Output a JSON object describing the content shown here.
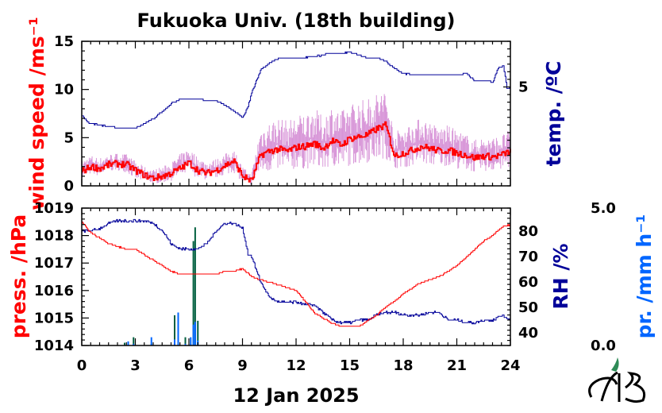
{
  "title": "Fukuoka Univ. (18th building)",
  "date_label": "12 Jan 2025",
  "colors": {
    "wind": "#ff0000",
    "wind_raw": "#d896d8",
    "temp": "#000099",
    "press": "#ff0000",
    "rh": "#000099",
    "precip_dark": "#005f3f",
    "precip_light": "#0066ff",
    "logo": "#2e8b57"
  },
  "chart_data": [
    {
      "type": "line",
      "name": "upper",
      "x_ticks": [
        "0",
        "3",
        "6",
        "9",
        "12",
        "15",
        "18",
        "21",
        "24"
      ],
      "xlim": [
        0,
        24
      ],
      "left_axis": {
        "label": "wind speed /ms⁻¹",
        "ticks": [
          "0",
          "5",
          "10",
          "15"
        ],
        "ylim": [
          0,
          15
        ]
      },
      "right_axis": {
        "label": "temp. /ºC",
        "ticks": [
          "5"
        ],
        "ylim": [
          -1.5,
          8
        ]
      },
      "series": [
        {
          "axis": "left",
          "x": [
            0,
            0.5,
            1,
            1.5,
            2,
            2.5,
            3,
            3.5,
            4,
            4.5,
            5,
            5.5,
            6,
            6.5,
            7,
            7.5,
            8,
            8.5,
            9,
            9.5,
            10,
            10.5,
            11,
            11.5,
            12,
            12.5,
            13,
            13.5,
            14,
            14.5,
            15,
            15.5,
            16,
            16.5,
            17,
            17.5,
            18,
            18.5,
            19,
            19.5,
            20,
            20.5,
            21,
            21.5,
            22,
            22.5,
            23,
            23.5,
            24
          ],
          "values": [
            1.5,
            2.0,
            1.8,
            2.2,
            2.3,
            2.2,
            1.6,
            1.1,
            0.8,
            1.0,
            1.3,
            1.8,
            2.4,
            1.6,
            1.3,
            1.6,
            2.1,
            2.6,
            1.0,
            0.5,
            3.2,
            3.6,
            3.8,
            3.6,
            4.0,
            4.1,
            4.4,
            3.9,
            4.7,
            4.2,
            4.9,
            5.1,
            5.3,
            5.9,
            6.3,
            3.1,
            3.4,
            3.7,
            4.1,
            3.9,
            3.6,
            3.7,
            3.4,
            3.2,
            2.9,
            3.1,
            3.0,
            3.2,
            3.6
          ]
        },
        {
          "axis": "left",
          "x": [
            0,
            0.5,
            1,
            1.5,
            2,
            2.5,
            3,
            3.5,
            4,
            4.5,
            5,
            5.5,
            6,
            6.5,
            7,
            7.5,
            8,
            8.5,
            9,
            9.5,
            10,
            10.5,
            11,
            11.5,
            12,
            12.5,
            13,
            13.5,
            14,
            14.5,
            15,
            15.5,
            16,
            16.5,
            17,
            17.5,
            18,
            18.5,
            19,
            19.5,
            20,
            20.5,
            21,
            21.5,
            22,
            22.5,
            23,
            23.5,
            24
          ],
          "low": [
            0.8,
            1.2,
            1.0,
            1.5,
            1.6,
            1.4,
            0.7,
            0.4,
            0.2,
            0.3,
            0.5,
            0.9,
            1.3,
            0.8,
            0.6,
            0.8,
            1.1,
            1.4,
            0.3,
            0.1,
            1.2,
            1.4,
            1.6,
            1.2,
            1.8,
            1.7,
            1.9,
            1.5,
            2.0,
            1.7,
            2.1,
            2.2,
            2.4,
            2.6,
            2.9,
            1.8,
            1.9,
            2.0,
            2.3,
            2.1,
            2.0,
            2.1,
            1.8,
            1.6,
            1.4,
            1.5,
            1.5,
            1.6,
            1.9
          ],
          "high": [
            2.6,
            3.2,
            2.9,
            3.3,
            3.4,
            3.3,
            2.6,
            2.0,
            1.7,
            2.0,
            2.4,
            3.3,
            4.0,
            3.0,
            2.5,
            2.8,
            3.3,
            3.9,
            2.0,
            1.2,
            6.1,
            6.7,
            7.1,
            6.8,
            7.3,
            7.6,
            8.2,
            7.2,
            8.4,
            7.7,
            8.6,
            8.9,
            9.1,
            9.7,
            10.2,
            5.6,
            6.1,
            6.6,
            7.1,
            6.7,
            6.1,
            6.3,
            5.8,
            5.4,
            4.8,
            5.1,
            5.0,
            5.3,
            5.9
          ]
        },
        {
          "axis": "right",
          "x": [
            0,
            0.4,
            1,
            2,
            3,
            3.5,
            4,
            4.5,
            5,
            5.5,
            6,
            6.5,
            7,
            7.5,
            8,
            8.5,
            9,
            9.3,
            9.5,
            10,
            10.5,
            11,
            12,
            13,
            14,
            14.5,
            15,
            15.5,
            16,
            16.5,
            17,
            17.5,
            18,
            18.5,
            19,
            19.5,
            20,
            20.5,
            21,
            21.5,
            22,
            22.5,
            23,
            23.3,
            23.6,
            23.8,
            24
          ],
          "values": [
            3.1,
            2.6,
            2.5,
            2.3,
            2.3,
            2.6,
            2.9,
            3.4,
            3.9,
            4.2,
            4.2,
            4.2,
            4.1,
            4.1,
            3.8,
            3.4,
            3.0,
            3.7,
            4.6,
            6.1,
            6.6,
            6.9,
            6.9,
            7.0,
            7.2,
            7.2,
            7.3,
            7.1,
            6.9,
            6.9,
            6.7,
            6.2,
            5.9,
            5.8,
            5.8,
            5.8,
            5.8,
            5.8,
            5.8,
            5.9,
            5.4,
            5.4,
            5.3,
            6.2,
            6.4,
            4.9,
            5.0
          ]
        }
      ]
    },
    {
      "type": "line",
      "name": "lower",
      "x_ticks": [
        "0",
        "3",
        "6",
        "9",
        "12",
        "15",
        "18",
        "21",
        "24"
      ],
      "xlim": [
        0,
        24
      ],
      "left_axis": {
        "label": "press. /hPa",
        "ticks": [
          "1014",
          "1015",
          "1016",
          "1017",
          "1018",
          "1019"
        ],
        "ylim": [
          1014,
          1019
        ]
      },
      "right_axis": {
        "label": "RH /%",
        "ticks": [
          "40",
          "50",
          "60",
          "70",
          "80"
        ],
        "ylim": [
          35,
          89
        ]
      },
      "far_right_axis": {
        "label": "pr. /mm h⁻¹",
        "ticks": [
          "0.0",
          "5.0"
        ],
        "ylim": [
          0,
          5
        ]
      },
      "series": [
        {
          "axis": "left",
          "x": [
            0,
            0.5,
            1,
            1.5,
            2,
            2.5,
            3,
            3.5,
            4,
            4.5,
            5,
            5.5,
            6,
            6.5,
            7,
            7.5,
            8,
            8.5,
            9,
            9.5,
            10,
            10.5,
            11,
            11.5,
            12,
            12.5,
            13,
            13.5,
            14,
            14.5,
            15,
            15.5,
            16,
            16.5,
            17,
            17.5,
            18,
            18.5,
            19,
            19.5,
            20,
            20.5,
            21,
            21.5,
            22,
            22.5,
            23,
            23.5,
            24
          ],
          "values": [
            1018.5,
            1018.1,
            1017.9,
            1017.7,
            1017.6,
            1017.5,
            1017.5,
            1017.3,
            1017.1,
            1016.9,
            1016.7,
            1016.6,
            1016.6,
            1016.6,
            1016.6,
            1016.6,
            1016.7,
            1016.7,
            1016.8,
            1016.5,
            1016.4,
            1016.3,
            1016.2,
            1016.1,
            1016.0,
            1015.6,
            1015.2,
            1015.0,
            1014.8,
            1014.7,
            1014.7,
            1014.7,
            1014.9,
            1015.1,
            1015.4,
            1015.6,
            1015.9,
            1016.1,
            1016.3,
            1016.4,
            1016.5,
            1016.7,
            1016.9,
            1017.2,
            1017.5,
            1017.8,
            1018.0,
            1018.3,
            1018.4
          ]
        },
        {
          "axis": "right",
          "x": [
            0,
            0.5,
            1,
            1.5,
            2,
            2.5,
            3,
            3.5,
            4,
            4.5,
            5,
            5.5,
            6,
            6.5,
            7,
            7.5,
            8,
            8.5,
            9,
            9.3,
            9.5,
            10,
            10.5,
            11,
            11.5,
            12,
            12.5,
            13,
            13.5,
            14,
            14.5,
            15,
            15.5,
            16,
            16.5,
            17,
            17.5,
            18,
            18.5,
            19,
            19.5,
            20,
            20.5,
            21,
            21.5,
            22,
            22.5,
            23,
            23.5,
            24
          ],
          "values": [
            80,
            80,
            81,
            83,
            84,
            84,
            84,
            84,
            83,
            80,
            75,
            73,
            73,
            73,
            75,
            80,
            83,
            83,
            81,
            71,
            70,
            60,
            54,
            52,
            52,
            52,
            51,
            51,
            48,
            45,
            44,
            44,
            45,
            45,
            47,
            48,
            48,
            47,
            47,
            47,
            48,
            48,
            45,
            45,
            44,
            44,
            45,
            45,
            47,
            45
          ]
        },
        {
          "axis": "far_right",
          "type": "bar",
          "x": [
            2.4,
            2.6,
            2.9,
            3.9,
            5.2,
            5.4,
            5.8,
            6.1,
            6.25,
            6.35,
            6.5
          ],
          "values": [
            0.1,
            0.15,
            0.3,
            0.3,
            1.1,
            1.2,
            0.3,
            0.3,
            3.8,
            4.3,
            0.9
          ]
        }
      ]
    }
  ]
}
